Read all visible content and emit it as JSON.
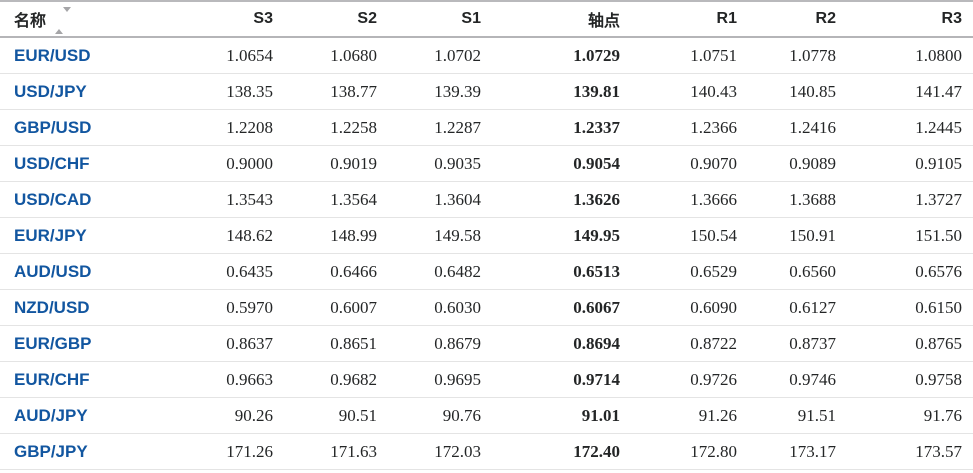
{
  "colors": {
    "pair_link_blue": "#1256a0",
    "text_dark": "#232526",
    "header_border": "#b5b5b8",
    "row_separator": "#e4e4e4",
    "sort_icon_gray": "#a5a5a8"
  },
  "table": {
    "columns": [
      {
        "key": "name",
        "label": "名称",
        "sortable": true
      },
      {
        "key": "s3",
        "label": "S3"
      },
      {
        "key": "s2",
        "label": "S2"
      },
      {
        "key": "s1",
        "label": "S1"
      },
      {
        "key": "pivot",
        "label": "轴点"
      },
      {
        "key": "r1",
        "label": "R1"
      },
      {
        "key": "r2",
        "label": "R2"
      },
      {
        "key": "r3",
        "label": "R3"
      }
    ],
    "rows": [
      {
        "name": "EUR/USD",
        "s3": "1.0654",
        "s2": "1.0680",
        "s1": "1.0702",
        "pivot": "1.0729",
        "r1": "1.0751",
        "r2": "1.0778",
        "r3": "1.0800"
      },
      {
        "name": "USD/JPY",
        "s3": "138.35",
        "s2": "138.77",
        "s1": "139.39",
        "pivot": "139.81",
        "r1": "140.43",
        "r2": "140.85",
        "r3": "141.47"
      },
      {
        "name": "GBP/USD",
        "s3": "1.2208",
        "s2": "1.2258",
        "s1": "1.2287",
        "pivot": "1.2337",
        "r1": "1.2366",
        "r2": "1.2416",
        "r3": "1.2445"
      },
      {
        "name": "USD/CHF",
        "s3": "0.9000",
        "s2": "0.9019",
        "s1": "0.9035",
        "pivot": "0.9054",
        "r1": "0.9070",
        "r2": "0.9089",
        "r3": "0.9105"
      },
      {
        "name": "USD/CAD",
        "s3": "1.3543",
        "s2": "1.3564",
        "s1": "1.3604",
        "pivot": "1.3626",
        "r1": "1.3666",
        "r2": "1.3688",
        "r3": "1.3727"
      },
      {
        "name": "EUR/JPY",
        "s3": "148.62",
        "s2": "148.99",
        "s1": "149.58",
        "pivot": "149.95",
        "r1": "150.54",
        "r2": "150.91",
        "r3": "151.50"
      },
      {
        "name": "AUD/USD",
        "s3": "0.6435",
        "s2": "0.6466",
        "s1": "0.6482",
        "pivot": "0.6513",
        "r1": "0.6529",
        "r2": "0.6560",
        "r3": "0.6576"
      },
      {
        "name": "NZD/USD",
        "s3": "0.5970",
        "s2": "0.6007",
        "s1": "0.6030",
        "pivot": "0.6067",
        "r1": "0.6090",
        "r2": "0.6127",
        "r3": "0.6150"
      },
      {
        "name": "EUR/GBP",
        "s3": "0.8637",
        "s2": "0.8651",
        "s1": "0.8679",
        "pivot": "0.8694",
        "r1": "0.8722",
        "r2": "0.8737",
        "r3": "0.8765"
      },
      {
        "name": "EUR/CHF",
        "s3": "0.9663",
        "s2": "0.9682",
        "s1": "0.9695",
        "pivot": "0.9714",
        "r1": "0.9726",
        "r2": "0.9746",
        "r3": "0.9758"
      },
      {
        "name": "AUD/JPY",
        "s3": "90.26",
        "s2": "90.51",
        "s1": "90.76",
        "pivot": "91.01",
        "r1": "91.26",
        "r2": "91.51",
        "r3": "91.76"
      },
      {
        "name": "GBP/JPY",
        "s3": "171.26",
        "s2": "171.63",
        "s1": "172.03",
        "pivot": "172.40",
        "r1": "172.80",
        "r2": "173.17",
        "r3": "173.57"
      }
    ]
  }
}
